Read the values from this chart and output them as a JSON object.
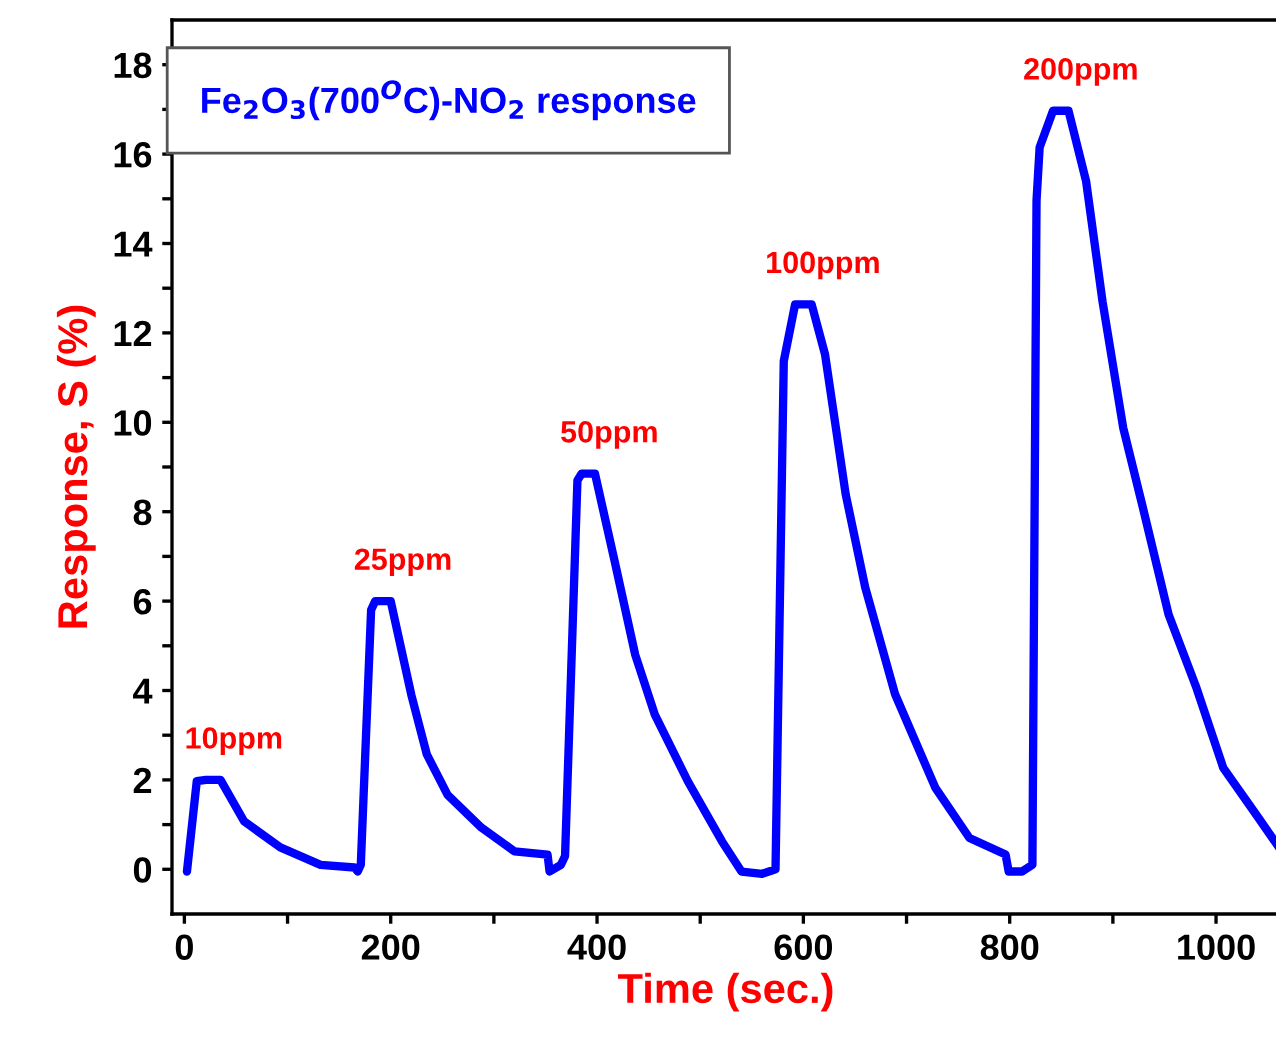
{
  "chart_data": {
    "type": "line",
    "title": "Fe$_{2}$O$_{3}$(700$^{O}$C)-NO$_{2}$ response",
    "xlabel": "Time (sec.)",
    "ylabel": "Response, S (%)",
    "series": [
      {
        "color": "#0000ff",
        "x": [
          2.5,
          12,
          21,
          35,
          58,
          93,
          132,
          165,
          168,
          171,
          181,
          185,
          200,
          220,
          229,
          235,
          255,
          288,
          320,
          352,
          354,
          365,
          369,
          381,
          385,
          398,
          417,
          437,
          456,
          488,
          521,
          540,
          560,
          573,
          581,
          592,
          608,
          621,
          641,
          660,
          689,
          728,
          761,
          796,
          799,
          812,
          822,
          826,
          829,
          842,
          857,
          874,
          890,
          910,
          929,
          954,
          981,
          1007,
          1039,
          1061
        ],
        "values": [
          -0.05,
          1.97,
          2.0,
          2.0,
          1.07,
          0.49,
          0.1,
          0.04,
          -0.05,
          0.1,
          5.8,
          6.0,
          6.0,
          3.9,
          3.1,
          2.57,
          1.67,
          0.93,
          0.4,
          0.33,
          -0.05,
          0.1,
          0.3,
          8.7,
          8.85,
          8.85,
          6.9,
          4.8,
          3.46,
          1.97,
          0.63,
          -0.05,
          -0.1,
          0.0,
          11.37,
          12.64,
          12.64,
          11.52,
          8.39,
          6.3,
          3.91,
          1.82,
          0.7,
          0.33,
          -0.05,
          -0.05,
          0.1,
          14.96,
          16.15,
          16.97,
          16.97,
          15.4,
          12.7,
          9.88,
          8.1,
          5.7,
          4.06,
          2.27,
          1.22,
          0.49
        ]
      }
    ],
    "annotations": [
      {
        "text": "10ppm",
        "x": 21,
        "y": 2.0
      },
      {
        "text": "25ppm",
        "x": 185,
        "y": 6.0
      },
      {
        "text": "50ppm",
        "x": 385,
        "y": 8.85
      },
      {
        "text": "100ppm",
        "x": 592,
        "y": 12.64
      },
      {
        "text": "200ppm",
        "x": 842,
        "y": 16.97
      }
    ],
    "xlim": [
      -12,
      1062
    ],
    "ylim": [
      -1,
      19
    ],
    "xticks": [
      0,
      {
        "value": 100,
        "label": null
      },
      200,
      {
        "value": 300,
        "label": null
      },
      400,
      {
        "value": 500,
        "label": null
      },
      600,
      {
        "value": 700,
        "label": null
      },
      800,
      {
        "value": 900,
        "label": null
      },
      1000
    ],
    "yticks": [
      0,
      {
        "value": 1,
        "label": null
      },
      2,
      {
        "value": 3,
        "label": null
      },
      4,
      {
        "value": 5,
        "label": null
      },
      6,
      {
        "value": 7,
        "label": null
      },
      8,
      {
        "value": 9,
        "label": null
      },
      10,
      {
        "value": 11,
        "label": null
      },
      12,
      {
        "value": 13,
        "label": null
      },
      14,
      {
        "value": 15,
        "label": null
      },
      16,
      {
        "value": 17,
        "label": null
      },
      18
    ],
    "grid": false,
    "legend": false,
    "marker": "none",
    "line_style": "solid"
  }
}
